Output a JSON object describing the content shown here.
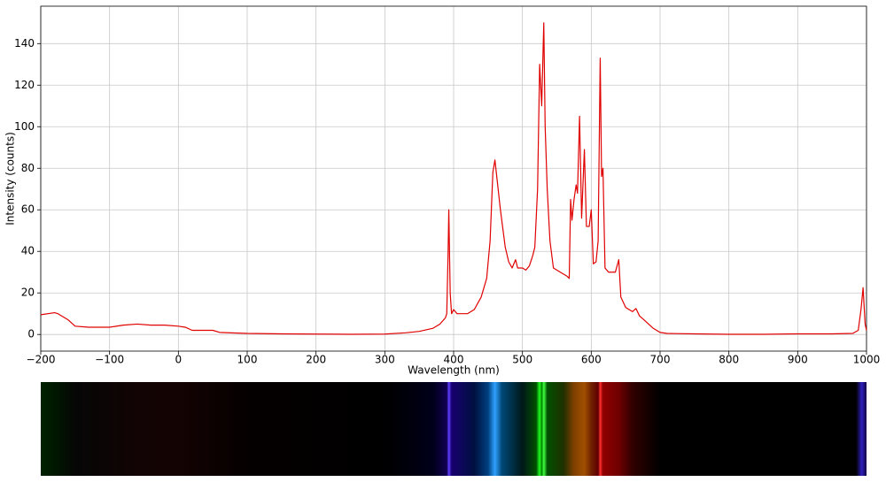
{
  "chart_data": {
    "type": "line",
    "x_label": "Wavelength (nm)",
    "y_label": "Intensity (counts)",
    "color": "#e00000",
    "grid": true,
    "x": [
      -200,
      -180,
      -175,
      -160,
      -150,
      -130,
      -100,
      -80,
      -60,
      -40,
      -20,
      0,
      10,
      20,
      50,
      60,
      100,
      150,
      200,
      250,
      300,
      330,
      350,
      370,
      380,
      388,
      390,
      392,
      393,
      395,
      397,
      400,
      405,
      420,
      430,
      440,
      448,
      453,
      457,
      460,
      463,
      468,
      475,
      480,
      485,
      490,
      493,
      500,
      505,
      510,
      515,
      518,
      522,
      525,
      528,
      531,
      533,
      536,
      540,
      545,
      555,
      565,
      568,
      570,
      572,
      575,
      578,
      580,
      583,
      586,
      590,
      593,
      597,
      600,
      603,
      607,
      610,
      613,
      615,
      617,
      620,
      625,
      635,
      640,
      643,
      650,
      660,
      665,
      670,
      680,
      690,
      700,
      710,
      750,
      800,
      850,
      900,
      950,
      980,
      988,
      992,
      995,
      998,
      1000
    ],
    "values": [
      9.5,
      10.5,
      10,
      7,
      4,
      3.5,
      3.5,
      4.5,
      5,
      4.5,
      4.5,
      4,
      3.5,
      2,
      2,
      1,
      0.5,
      0.3,
      0.2,
      0.1,
      0.2,
      0.8,
      1.5,
      3,
      5,
      8,
      10,
      40,
      60,
      20,
      10,
      12,
      10,
      10,
      12,
      18,
      27,
      45,
      78,
      84,
      75,
      60,
      42,
      35,
      32,
      36,
      32,
      32,
      31,
      33,
      38,
      42,
      70,
      130,
      110,
      150,
      100,
      70,
      45,
      32,
      30,
      28,
      27,
      65,
      55,
      65,
      72,
      68,
      105,
      56,
      89,
      52,
      52,
      60,
      34,
      35,
      45,
      133,
      76,
      80,
      32,
      30,
      30,
      36,
      18,
      13,
      11,
      12.5,
      9,
      6,
      3,
      1,
      0.5,
      0.3,
      0.1,
      0.1,
      0.3,
      0.3,
      0.5,
      2,
      12,
      22.5,
      5,
      2
    ],
    "xlim": [
      -200,
      1000
    ],
    "ylim": [
      -8,
      158
    ],
    "xticks": [
      {
        "value": -200,
        "label": "−200"
      },
      {
        "value": -100,
        "label": "−100"
      },
      0,
      100,
      200,
      300,
      400,
      500,
      600,
      700,
      800,
      900,
      1000
    ],
    "yticks": [
      0,
      20,
      40,
      60,
      80,
      100,
      120,
      140
    ]
  }
}
